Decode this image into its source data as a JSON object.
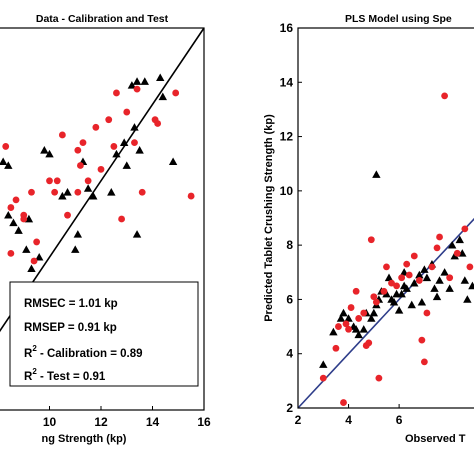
{
  "chart_data": [
    {
      "type": "scatter",
      "title": "Data - Calibration and Test",
      "xlabel": "ng Strength (kp)",
      "ylabel": "",
      "xlim": [
        8,
        16
      ],
      "ylim": [
        6,
        16
      ],
      "x_ticks": [
        "10",
        "12",
        "14",
        "16"
      ],
      "y_ticks": [],
      "grid": false,
      "reference_line": {
        "from": [
          8,
          8
        ],
        "to": [
          16,
          16
        ],
        "color": "#000000"
      },
      "stats_box": {
        "line1": "RMSEC = 1.01 kp",
        "line2": "RMSEP = 0.91 kp",
        "line3_base": "R",
        "line3_sup": "2",
        "line3_rest": " - Calibration = 0.89",
        "line4_base": "R",
        "line4_sup": "2",
        "line4_rest": " - Test = 0.91"
      },
      "series": [
        {
          "marker": "triangle",
          "color": "#000000",
          "points": [
            [
              8.2,
              12.5
            ],
            [
              8.4,
              11.1
            ],
            [
              8.6,
              10.9
            ],
            [
              8.4,
              12.4
            ],
            [
              8.8,
              10.7
            ],
            [
              9.1,
              10.2
            ],
            [
              9.3,
              9.7
            ],
            [
              9.6,
              10.0
            ],
            [
              9.2,
              11.0
            ],
            [
              10.0,
              8.2
            ],
            [
              10.2,
              8.1
            ],
            [
              9.8,
              12.8
            ],
            [
              10.0,
              12.7
            ],
            [
              10.5,
              11.6
            ],
            [
              10.7,
              11.7
            ],
            [
              11.3,
              12.5
            ],
            [
              11.5,
              11.8
            ],
            [
              11.1,
              10.6
            ],
            [
              11.0,
              10.2
            ],
            [
              11.7,
              11.6
            ],
            [
              12.4,
              11.7
            ],
            [
              12.6,
              12.7
            ],
            [
              12.9,
              13.0
            ],
            [
              13.0,
              12.4
            ],
            [
              13.3,
              13.4
            ],
            [
              13.5,
              12.8
            ],
            [
              13.4,
              10.6
            ],
            [
              13.4,
              14.6
            ],
            [
              13.2,
              14.5
            ],
            [
              13.7,
              14.6
            ],
            [
              14.3,
              14.7
            ],
            [
              14.4,
              14.2
            ],
            [
              14.8,
              12.5
            ]
          ]
        },
        {
          "marker": "circle",
          "color": "#e8242a",
          "points": [
            [
              8.3,
              12.9
            ],
            [
              8.5,
              11.3
            ],
            [
              8.7,
              11.5
            ],
            [
              8.5,
              10.1
            ],
            [
              9.0,
              11.1
            ],
            [
              9.0,
              11.0
            ],
            [
              9.4,
              9.9
            ],
            [
              9.3,
              8.2
            ],
            [
              9.5,
              10.4
            ],
            [
              9.3,
              11.7
            ],
            [
              10.0,
              12.0
            ],
            [
              10.3,
              12.0
            ],
            [
              10.2,
              11.7
            ],
            [
              10.5,
              13.2
            ],
            [
              10.7,
              11.1
            ],
            [
              11.1,
              11.7
            ],
            [
              11.1,
              12.8
            ],
            [
              11.2,
              12.4
            ],
            [
              11.5,
              12.0
            ],
            [
              11.8,
              13.4
            ],
            [
              11.3,
              13.0
            ],
            [
              12.0,
              12.3
            ],
            [
              12.3,
              13.6
            ],
            [
              12.5,
              12.9
            ],
            [
              12.8,
              11.0
            ],
            [
              13.0,
              13.8
            ],
            [
              13.3,
              13.0
            ],
            [
              12.6,
              14.3
            ],
            [
              13.4,
              14.4
            ],
            [
              14.1,
              13.6
            ],
            [
              14.9,
              14.3
            ],
            [
              15.5,
              11.6
            ],
            [
              14.2,
              13.5
            ],
            [
              13.6,
              11.7
            ]
          ]
        }
      ]
    },
    {
      "type": "scatter",
      "title": "PLS Model using Spe",
      "xlabel": "Observed T",
      "ylabel": "Predicted Tablet Crushing Strength (kp)",
      "xlim": [
        2,
        9.2
      ],
      "ylim": [
        2,
        16
      ],
      "x_ticks": [
        "2",
        "4",
        "6"
      ],
      "y_ticks": [
        "2",
        "4",
        "6",
        "8",
        "10",
        "12",
        "14",
        "16"
      ],
      "grid": false,
      "reference_line": {
        "from": [
          2,
          2
        ],
        "to": [
          9.2,
          9.2
        ],
        "color": "#2e3d8a"
      },
      "series": [
        {
          "marker": "triangle",
          "color": "#000000",
          "points": [
            [
              3.0,
              3.6
            ],
            [
              3.4,
              4.8
            ],
            [
              3.7,
              5.3
            ],
            [
              3.8,
              5.5
            ],
            [
              4.0,
              5.3
            ],
            [
              4.2,
              5.0
            ],
            [
              4.3,
              4.9
            ],
            [
              4.4,
              4.7
            ],
            [
              4.6,
              4.9
            ],
            [
              4.7,
              5.5
            ],
            [
              4.9,
              5.3
            ],
            [
              5.0,
              5.5
            ],
            [
              5.1,
              5.8
            ],
            [
              5.2,
              6.0
            ],
            [
              5.3,
              6.3
            ],
            [
              5.5,
              6.2
            ],
            [
              5.6,
              6.8
            ],
            [
              5.7,
              6.0
            ],
            [
              5.8,
              5.9
            ],
            [
              5.9,
              6.2
            ],
            [
              6.0,
              5.6
            ],
            [
              6.1,
              6.2
            ],
            [
              6.2,
              6.5
            ],
            [
              6.3,
              6.4
            ],
            [
              6.5,
              5.8
            ],
            [
              6.6,
              6.6
            ],
            [
              6.8,
              6.9
            ],
            [
              7.0,
              7.1
            ],
            [
              7.1,
              6.8
            ],
            [
              7.3,
              7.3
            ],
            [
              7.5,
              6.1
            ],
            [
              7.6,
              6.7
            ],
            [
              7.8,
              7.0
            ],
            [
              8.0,
              6.4
            ],
            [
              8.2,
              7.6
            ],
            [
              8.4,
              8.2
            ],
            [
              8.6,
              6.7
            ],
            [
              8.7,
              6.0
            ],
            [
              8.9,
              6.5
            ],
            [
              5.1,
              10.6
            ],
            [
              6.2,
              7.0
            ],
            [
              6.9,
              5.9
            ],
            [
              7.4,
              6.4
            ],
            [
              8.1,
              8.0
            ],
            [
              8.5,
              7.7
            ]
          ]
        },
        {
          "marker": "circle",
          "color": "#e8242a",
          "points": [
            [
              3.0,
              3.1
            ],
            [
              3.5,
              4.2
            ],
            [
              3.6,
              5.0
            ],
            [
              3.8,
              2.2
            ],
            [
              3.9,
              5.1
            ],
            [
              4.0,
              4.9
            ],
            [
              4.1,
              5.7
            ],
            [
              4.3,
              6.3
            ],
            [
              4.4,
              5.3
            ],
            [
              4.6,
              5.5
            ],
            [
              4.7,
              4.3
            ],
            [
              4.8,
              4.4
            ],
            [
              4.9,
              8.2
            ],
            [
              5.0,
              6.1
            ],
            [
              5.1,
              5.9
            ],
            [
              5.2,
              3.1
            ],
            [
              5.4,
              6.3
            ],
            [
              5.5,
              7.2
            ],
            [
              5.7,
              6.6
            ],
            [
              5.9,
              6.5
            ],
            [
              6.1,
              6.8
            ],
            [
              6.3,
              7.3
            ],
            [
              6.4,
              6.9
            ],
            [
              6.6,
              7.6
            ],
            [
              6.8,
              6.7
            ],
            [
              6.9,
              4.5
            ],
            [
              7.0,
              3.7
            ],
            [
              7.1,
              5.5
            ],
            [
              7.3,
              7.2
            ],
            [
              7.5,
              7.9
            ],
            [
              7.6,
              8.3
            ],
            [
              7.8,
              13.5
            ],
            [
              8.0,
              6.8
            ],
            [
              8.3,
              7.7
            ],
            [
              8.6,
              8.6
            ],
            [
              8.8,
              7.2
            ]
          ]
        }
      ]
    }
  ]
}
